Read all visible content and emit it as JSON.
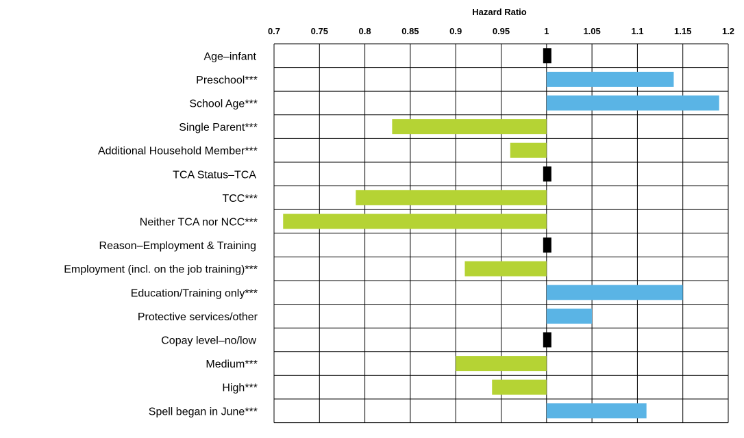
{
  "chart_data": {
    "type": "bar",
    "orientation": "horizontal",
    "title": "",
    "xlabel": "Hazard Ratio",
    "ylabel": "",
    "xlim": [
      0.7,
      1.2
    ],
    "baseline": 1,
    "x_ticks": [
      "0.7",
      "0.75",
      "0.8",
      "0.85",
      "0.9",
      "0.95",
      "1",
      "1.05",
      "1.1",
      "1.15",
      "1.2"
    ],
    "grid": true,
    "colors": {
      "above_one": "#5ab4e5",
      "below_one": "#b5d334",
      "reference": "#000000"
    },
    "categories": [
      "Age–infant",
      "Preschool***",
      "School Age***",
      "Single Parent***",
      "Additional Household Member***",
      "TCA Status–TCA",
      "TCC***",
      "Neither TCA nor NCC***",
      "Reason–Employment & Training",
      "Employment (incl. on the job training)***",
      "Education/Training only***",
      "Protective services/other",
      "Copay level–no/low",
      "Medium***",
      "High***",
      "Spell began in June***"
    ],
    "values": [
      1,
      1.14,
      1.19,
      0.83,
      0.96,
      1,
      0.79,
      0.71,
      1,
      0.91,
      1.15,
      1.05,
      1,
      0.9,
      0.94,
      1.11
    ],
    "reference_rows": [
      true,
      false,
      false,
      false,
      false,
      true,
      false,
      false,
      true,
      false,
      false,
      false,
      true,
      false,
      false,
      false
    ]
  }
}
